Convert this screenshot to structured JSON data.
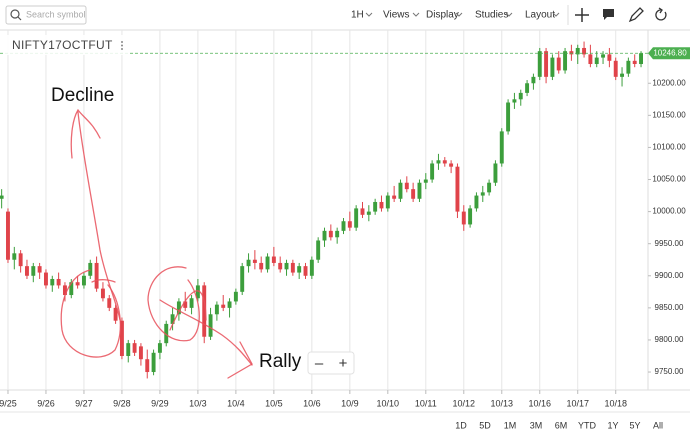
{
  "toolbar": {
    "search_placeholder": "Search symbol",
    "interval": "1H",
    "menus": [
      "Views",
      "Display",
      "Studies",
      "Layout"
    ]
  },
  "chart_data": {
    "type": "candlestick",
    "title": "NIFTY17OCTFUT",
    "candles": [
      [
        10020,
        10035,
        10005,
        10025
      ],
      [
        10000,
        10005,
        9920,
        9925
      ],
      [
        9925,
        9945,
        9910,
        9935
      ],
      [
        9935,
        9940,
        9905,
        9915
      ],
      [
        9915,
        9925,
        9895,
        9900
      ],
      [
        9900,
        9920,
        9890,
        9915
      ],
      [
        9915,
        9920,
        9895,
        9905
      ],
      [
        9905,
        9910,
        9880,
        9885
      ],
      [
        9885,
        9900,
        9875,
        9895
      ],
      [
        9895,
        9905,
        9880,
        9885
      ],
      [
        9885,
        9890,
        9860,
        9870
      ],
      [
        9870,
        9895,
        9865,
        9890
      ],
      [
        9890,
        9900,
        9880,
        9885
      ],
      [
        9885,
        9905,
        9880,
        9900
      ],
      [
        9900,
        9925,
        9895,
        9920
      ],
      [
        9920,
        9930,
        9875,
        9880
      ],
      [
        9880,
        9890,
        9860,
        9865
      ],
      [
        9865,
        9870,
        9845,
        9850
      ],
      [
        9850,
        9855,
        9825,
        9830
      ],
      [
        9830,
        9835,
        9770,
        9775
      ],
      [
        9775,
        9800,
        9765,
        9795
      ],
      [
        9795,
        9800,
        9775,
        9780
      ],
      [
        9790,
        9795,
        9760,
        9770
      ],
      [
        9770,
        9785,
        9740,
        9750
      ],
      [
        9750,
        9785,
        9745,
        9780
      ],
      [
        9780,
        9800,
        9770,
        9795
      ],
      [
        9795,
        9830,
        9790,
        9825
      ],
      [
        9825,
        9850,
        9815,
        9840
      ],
      [
        9840,
        9865,
        9830,
        9860
      ],
      [
        9860,
        9875,
        9845,
        9850
      ],
      [
        9850,
        9870,
        9840,
        9865
      ],
      [
        9865,
        9895,
        9860,
        9885
      ],
      [
        9885,
        9890,
        9795,
        9805
      ],
      [
        9805,
        9850,
        9800,
        9840
      ],
      [
        9840,
        9860,
        9830,
        9855
      ],
      [
        9855,
        9870,
        9845,
        9850
      ],
      [
        9850,
        9865,
        9835,
        9860
      ],
      [
        9860,
        9880,
        9855,
        9875
      ],
      [
        9875,
        9920,
        9870,
        9915
      ],
      [
        9915,
        9935,
        9905,
        9925
      ],
      [
        9925,
        9940,
        9910,
        9920
      ],
      [
        9920,
        9930,
        9905,
        9910
      ],
      [
        9910,
        9935,
        9905,
        9930
      ],
      [
        9930,
        9945,
        9915,
        9920
      ],
      [
        9920,
        9930,
        9905,
        9910
      ],
      [
        9910,
        9925,
        9900,
        9920
      ],
      [
        9920,
        9925,
        9900,
        9905
      ],
      [
        9905,
        9920,
        9895,
        9915
      ],
      [
        9915,
        9920,
        9895,
        9900
      ],
      [
        9900,
        9930,
        9895,
        9925
      ],
      [
        9925,
        9960,
        9920,
        9955
      ],
      [
        9955,
        9975,
        9945,
        9970
      ],
      [
        9970,
        9980,
        9955,
        9960
      ],
      [
        9960,
        9975,
        9950,
        9970
      ],
      [
        9970,
        9990,
        9965,
        9985
      ],
      [
        9985,
        10000,
        9970,
        9975
      ],
      [
        9975,
        10010,
        9970,
        10005
      ],
      [
        10005,
        10015,
        9990,
        9995
      ],
      [
        9995,
        10010,
        9985,
        10000
      ],
      [
        10000,
        10020,
        9995,
        10015
      ],
      [
        10015,
        10025,
        10000,
        10005
      ],
      [
        10005,
        10030,
        10000,
        10025
      ],
      [
        10025,
        10040,
        10015,
        10020
      ],
      [
        10020,
        10050,
        10015,
        10045
      ],
      [
        10045,
        10055,
        10030,
        10035
      ],
      [
        10035,
        10045,
        10015,
        10020
      ],
      [
        10020,
        10050,
        10015,
        10045
      ],
      [
        10045,
        10060,
        10035,
        10050
      ],
      [
        10050,
        10080,
        10045,
        10075
      ],
      [
        10075,
        10090,
        10065,
        10080
      ],
      [
        10080,
        10085,
        10070,
        10075
      ],
      [
        10075,
        10080,
        10060,
        10070
      ],
      [
        10070,
        10075,
        9990,
        10000
      ],
      [
        10000,
        10010,
        9970,
        9980
      ],
      [
        9980,
        10010,
        9975,
        10005
      ],
      [
        10005,
        10030,
        10000,
        10025
      ],
      [
        10025,
        10040,
        10015,
        10030
      ],
      [
        10030,
        10050,
        10025,
        10045
      ],
      [
        10045,
        10080,
        10040,
        10075
      ],
      [
        10075,
        10130,
        10070,
        10125
      ],
      [
        10125,
        10175,
        10120,
        10170
      ],
      [
        10170,
        10185,
        10160,
        10175
      ],
      [
        10175,
        10190,
        10165,
        10185
      ],
      [
        10185,
        10205,
        10180,
        10200
      ],
      [
        10200,
        10215,
        10190,
        10210
      ],
      [
        10210,
        10255,
        10205,
        10250
      ],
      [
        10250,
        10255,
        10200,
        10210
      ],
      [
        10210,
        10245,
        10205,
        10240
      ],
      [
        10240,
        10250,
        10215,
        10220
      ],
      [
        10220,
        10255,
        10215,
        10250
      ],
      [
        10250,
        10260,
        10235,
        10245
      ],
      [
        10245,
        10260,
        10230,
        10255
      ],
      [
        10255,
        10265,
        10240,
        10245
      ],
      [
        10245,
        10260,
        10225,
        10230
      ],
      [
        10230,
        10250,
        10225,
        10240
      ],
      [
        10240,
        10250,
        10230,
        10245
      ],
      [
        10245,
        10255,
        10225,
        10235
      ],
      [
        10235,
        10240,
        10205,
        10210
      ],
      [
        10210,
        10225,
        10195,
        10215
      ],
      [
        10215,
        10240,
        10210,
        10235
      ],
      [
        10235,
        10245,
        10225,
        10230
      ],
      [
        10230,
        10250,
        10225,
        10246.8
      ]
    ],
    "up_color": "#3c9e3c",
    "down_color": "#e0434a",
    "last_price": {
      "value": 10246.8,
      "label": "10246.80"
    },
    "last_price_color": "#4caf50",
    "xlim": [
      -0.26,
      102.1
    ],
    "xticks": [
      {
        "value": 1,
        "label": "9/25"
      },
      {
        "value": 7,
        "label": "9/26"
      },
      {
        "value": 13,
        "label": "9/27"
      },
      {
        "value": 19,
        "label": "9/28"
      },
      {
        "value": 25,
        "label": "9/29"
      },
      {
        "value": 31,
        "label": "10/3"
      },
      {
        "value": 37,
        "label": "10/4"
      },
      {
        "value": 43,
        "label": "10/5"
      },
      {
        "value": 49,
        "label": "10/6"
      },
      {
        "value": 55,
        "label": "10/9"
      },
      {
        "value": 61,
        "label": "10/10"
      },
      {
        "value": 67,
        "label": "10/11"
      },
      {
        "value": 73,
        "label": "10/12"
      },
      {
        "value": 79,
        "label": "10/13"
      },
      {
        "value": 85,
        "label": "10/16"
      },
      {
        "value": 91,
        "label": "10/17"
      },
      {
        "value": 97,
        "label": "10/18"
      }
    ],
    "ylim": [
      9722,
      10283
    ],
    "yticks": [
      {
        "value": 9750,
        "label": "9750.00"
      },
      {
        "value": 9800,
        "label": "9800.00"
      },
      {
        "value": 9850,
        "label": "9850.00"
      },
      {
        "value": 9900,
        "label": "9900.00"
      },
      {
        "value": 9950,
        "label": "9950.00"
      },
      {
        "value": 10000,
        "label": "10000.00"
      },
      {
        "value": 10050,
        "label": "10050.00"
      },
      {
        "value": 10100,
        "label": "10100.00"
      },
      {
        "value": 10150,
        "label": "10150.00"
      },
      {
        "value": 10200,
        "label": "10200.00"
      }
    ],
    "grid": true,
    "annotations": [
      "Decline",
      "Rally"
    ],
    "zoom": [
      "–",
      "+"
    ]
  },
  "ranges": [
    "1D",
    "5D",
    "1M",
    "3M",
    "6M",
    "YTD",
    "1Y",
    "5Y",
    "All"
  ]
}
